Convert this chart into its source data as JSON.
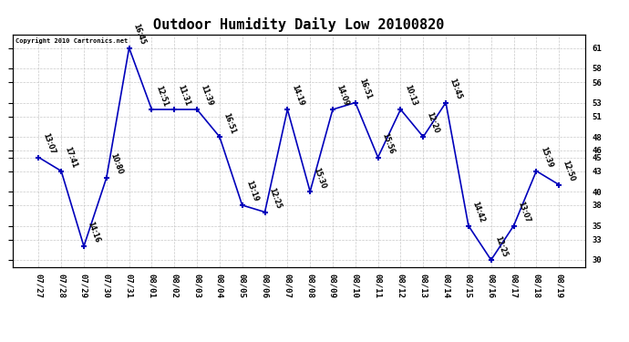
{
  "title": "Outdoor Humidity Daily Low 20100820",
  "copyright": "Copyright 2010 Cartronics.net",
  "x_labels": [
    "07/27",
    "07/28",
    "07/29",
    "07/30",
    "07/31",
    "08/01",
    "08/02",
    "08/03",
    "08/04",
    "08/05",
    "08/06",
    "08/07",
    "08/08",
    "08/09",
    "08/10",
    "08/11",
    "08/12",
    "08/13",
    "08/14",
    "08/15",
    "08/16",
    "08/17",
    "08/18",
    "08/19"
  ],
  "y_values": [
    45,
    43,
    32,
    42,
    61,
    52,
    52,
    52,
    48,
    38,
    37,
    52,
    40,
    52,
    53,
    45,
    52,
    48,
    53,
    35,
    30,
    35,
    43,
    41
  ],
  "time_labels": [
    "13:07",
    "17:41",
    "14:16",
    "10:80",
    "16:45",
    "12:51",
    "11:31",
    "11:39",
    "16:51",
    "13:19",
    "12:25",
    "14:19",
    "15:30",
    "14:09",
    "16:51",
    "15:56",
    "10:13",
    "12:20",
    "13:45",
    "14:42",
    "12:25",
    "13:07",
    "15:39",
    "12:50"
  ],
  "ylim_min": 29,
  "ylim_max": 63,
  "yticks": [
    30,
    33,
    35,
    38,
    40,
    43,
    45,
    46,
    48,
    51,
    53,
    56,
    58,
    61
  ],
  "line_color": "#0000bb",
  "bg_color": "#ffffff",
  "grid_color": "#bbbbbb",
  "title_fontsize": 11,
  "figwidth": 6.9,
  "figheight": 3.75,
  "dpi": 100
}
